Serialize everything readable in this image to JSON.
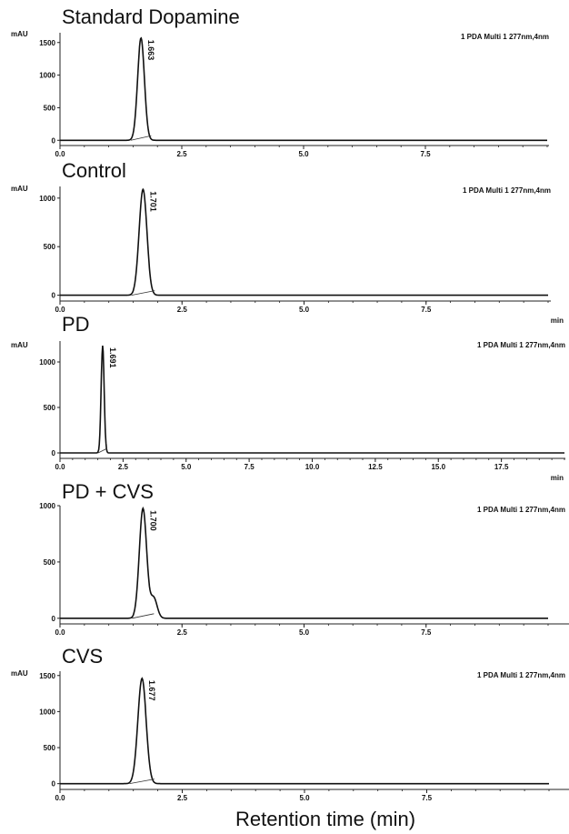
{
  "figure": {
    "xlabel": "Retention time (min)"
  },
  "chart_data": [
    {
      "type": "line",
      "title": "Standard Dopamine",
      "ylabel": "mAU",
      "xlabel": "",
      "detector_label": "1 PDA Multi 1 277nm,4nm",
      "xlim": [
        0,
        10.0
      ],
      "ylim": [
        -80,
        1650
      ],
      "x_ticks": [
        "0.0",
        "2.5",
        "5.0",
        "7.5"
      ],
      "y_ticks": [
        "0",
        "500",
        "1000",
        "1500"
      ],
      "peak": {
        "rt": 1.663,
        "label": "1.663",
        "height": 1570,
        "sigma": 0.07,
        "tail": 0
      },
      "baseline": 0
    },
    {
      "type": "line",
      "title": "Control",
      "ylabel": "mAU",
      "xlabel": "min",
      "detector_label": "1 PDA Multi 1 277nm,4nm",
      "xlim": [
        0,
        10.0
      ],
      "ylim": [
        -60,
        1120
      ],
      "x_ticks": [
        "0.0",
        "2.5",
        "5.0",
        "7.5"
      ],
      "y_ticks": [
        "0",
        "500",
        "1000"
      ],
      "peak": {
        "rt": 1.701,
        "label": "1.701",
        "height": 1090,
        "sigma": 0.08,
        "tail": 0
      },
      "baseline": 0
    },
    {
      "type": "line",
      "title": "PD",
      "ylabel": "mAU",
      "xlabel": "min",
      "detector_label": "1 PDA Multi 1 277nm,4nm",
      "xlim": [
        0,
        20.0
      ],
      "ylim": [
        -60,
        1230
      ],
      "x_ticks": [
        "0.0",
        "2.5",
        "5.0",
        "7.5",
        "10.0",
        "12.5",
        "15.0",
        "17.5"
      ],
      "y_ticks": [
        "0",
        "500",
        "1000"
      ],
      "peak": {
        "rt": 1.691,
        "label": "1.691",
        "height": 1180,
        "sigma": 0.06,
        "tail": 0
      },
      "baseline": 0
    },
    {
      "type": "line",
      "title": "PD + CVS",
      "ylabel": "",
      "xlabel": "",
      "detector_label": "1 PDA Multi 1 277nm,4nm",
      "xlim": [
        0,
        10.0
      ],
      "ylim": [
        -50,
        1000
      ],
      "x_ticks": [
        "0.0",
        "2.5",
        "5.0",
        "7.5"
      ],
      "y_ticks": [
        "0",
        "500",
        "1000"
      ],
      "peak": {
        "rt": 1.7,
        "label": "1.700",
        "height": 975,
        "sigma": 0.075,
        "tail": 180
      },
      "baseline": 0
    },
    {
      "type": "line",
      "title": "CVS",
      "ylabel": "mAU",
      "xlabel": "",
      "detector_label": "1 PDA Multi 1 277nm,4nm",
      "xlim": [
        0,
        10.0
      ],
      "ylim": [
        -80,
        1560
      ],
      "x_ticks": [
        "0.0",
        "2.5",
        "5.0",
        "7.5"
      ],
      "y_ticks": [
        "0",
        "500",
        "1000",
        "1500"
      ],
      "peak": {
        "rt": 1.677,
        "label": "1.677",
        "height": 1460,
        "sigma": 0.085,
        "tail": 0
      },
      "baseline": 0
    }
  ]
}
